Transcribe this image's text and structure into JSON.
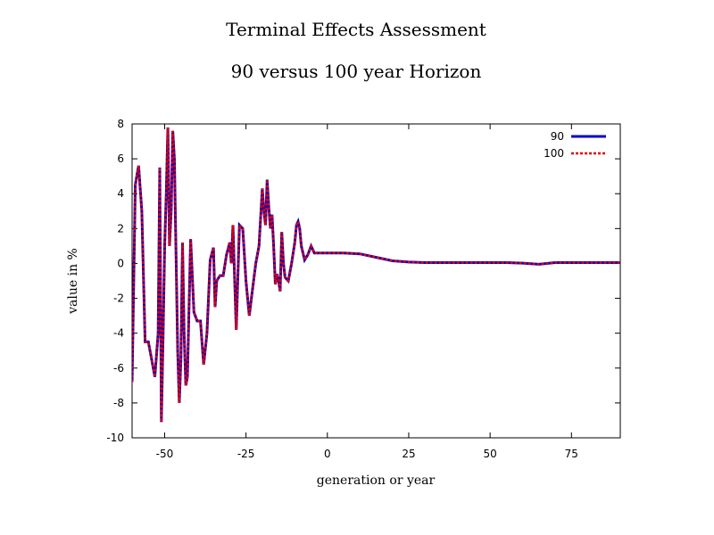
{
  "chart_data": {
    "type": "line",
    "title": "Terminal Effects Assessment",
    "subtitle": "90 versus 100 year Horizon",
    "xlabel": "generation or year",
    "ylabel": "value in %",
    "xlim": [
      -60,
      90
    ],
    "ylim": [
      -10,
      8
    ],
    "x_ticks": [
      -50,
      -25,
      0,
      25,
      50,
      75
    ],
    "y_ticks": [
      8,
      6,
      4,
      2,
      0,
      -2,
      -4,
      -6,
      -8,
      -10
    ],
    "legend_position": "top-right",
    "grid": false,
    "series": [
      {
        "name": "90",
        "color": "#0000cc",
        "style": "solid",
        "points": [
          [
            -60,
            -6.8
          ],
          [
            -59,
            4.5
          ],
          [
            -58,
            5.6
          ],
          [
            -57,
            3.0
          ],
          [
            -56,
            -4.5
          ],
          [
            -55,
            -4.5
          ],
          [
            -54,
            -5.5
          ],
          [
            -53,
            -6.5
          ],
          [
            -52,
            -4.0
          ],
          [
            -51.5,
            5.5
          ],
          [
            -51,
            -9.1
          ],
          [
            -50.5,
            -4.5
          ],
          [
            -50,
            1.0
          ],
          [
            -49.5,
            4.0
          ],
          [
            -49,
            7.8
          ],
          [
            -48.5,
            1.0
          ],
          [
            -48,
            3.0
          ],
          [
            -47.5,
            7.6
          ],
          [
            -47,
            6.0
          ],
          [
            -46,
            -5.0
          ],
          [
            -45.5,
            -8.0
          ],
          [
            -45,
            -5.5
          ],
          [
            -44.5,
            1.2
          ],
          [
            -44,
            -4.0
          ],
          [
            -43.5,
            -7.0
          ],
          [
            -43,
            -6.5
          ],
          [
            -42,
            1.4
          ],
          [
            -41,
            -2.8
          ],
          [
            -40,
            -3.3
          ],
          [
            -39,
            -3.3
          ],
          [
            -38,
            -5.8
          ],
          [
            -37,
            -4.0
          ],
          [
            -36,
            0.2
          ],
          [
            -35,
            0.9
          ],
          [
            -34.5,
            -2.5
          ],
          [
            -34,
            -1.0
          ],
          [
            -33,
            -0.7
          ],
          [
            -32,
            -0.7
          ],
          [
            -31,
            0.5
          ],
          [
            -30,
            1.2
          ],
          [
            -29.5,
            0.0
          ],
          [
            -29,
            2.2
          ],
          [
            -28,
            -3.8
          ],
          [
            -27,
            2.2
          ],
          [
            -26,
            2.0
          ],
          [
            -25,
            -1.0
          ],
          [
            -24,
            -3.0
          ],
          [
            -23,
            -1.5
          ],
          [
            -22,
            0.0
          ],
          [
            -21,
            1.0
          ],
          [
            -20,
            4.3
          ],
          [
            -19.5,
            3.0
          ],
          [
            -19,
            2.2
          ],
          [
            -18.5,
            4.8
          ],
          [
            -18,
            3.2
          ],
          [
            -17.5,
            2.0
          ],
          [
            -17,
            2.8
          ],
          [
            -16.5,
            1.0
          ],
          [
            -16,
            -1.2
          ],
          [
            -15.5,
            -0.6
          ],
          [
            -15,
            -1.0
          ],
          [
            -14.5,
            -1.6
          ],
          [
            -14,
            1.8
          ],
          [
            -13.5,
            0.0
          ],
          [
            -13,
            -0.8
          ],
          [
            -12,
            -1.0
          ],
          [
            -11,
            0.0
          ],
          [
            -10,
            1.2
          ],
          [
            -9.5,
            2.2
          ],
          [
            -9,
            2.4
          ],
          [
            -8.5,
            2.0
          ],
          [
            -8,
            1.0
          ],
          [
            -7,
            0.2
          ],
          [
            -6,
            0.5
          ],
          [
            -5,
            1.0
          ],
          [
            -4,
            0.6
          ],
          [
            -2,
            0.6
          ],
          [
            0,
            0.6
          ],
          [
            5,
            0.6
          ],
          [
            10,
            0.55
          ],
          [
            15,
            0.35
          ],
          [
            20,
            0.15
          ],
          [
            25,
            0.08
          ],
          [
            30,
            0.05
          ],
          [
            35,
            0.05
          ],
          [
            40,
            0.05
          ],
          [
            45,
            0.05
          ],
          [
            50,
            0.05
          ],
          [
            55,
            0.05
          ],
          [
            60,
            0.02
          ],
          [
            65,
            -0.05
          ],
          [
            70,
            0.05
          ],
          [
            75,
            0.05
          ],
          [
            80,
            0.05
          ],
          [
            85,
            0.05
          ],
          [
            90,
            0.05
          ]
        ]
      },
      {
        "name": "100",
        "color": "#dd0000",
        "style": "dashed",
        "points": [
          [
            -60,
            -6.8
          ],
          [
            -59,
            4.5
          ],
          [
            -58,
            5.6
          ],
          [
            -57,
            3.0
          ],
          [
            -56,
            -4.5
          ],
          [
            -55,
            -4.5
          ],
          [
            -54,
            -5.5
          ],
          [
            -53,
            -6.5
          ],
          [
            -52,
            -4.0
          ],
          [
            -51.5,
            5.5
          ],
          [
            -51,
            -9.1
          ],
          [
            -50.5,
            -4.5
          ],
          [
            -50,
            1.0
          ],
          [
            -49.5,
            4.0
          ],
          [
            -49,
            7.8
          ],
          [
            -48.5,
            1.0
          ],
          [
            -48,
            3.0
          ],
          [
            -47.5,
            7.6
          ],
          [
            -47,
            6.0
          ],
          [
            -46,
            -5.0
          ],
          [
            -45.5,
            -8.0
          ],
          [
            -45,
            -5.5
          ],
          [
            -44.5,
            1.2
          ],
          [
            -44,
            -4.0
          ],
          [
            -43.5,
            -7.0
          ],
          [
            -43,
            -6.5
          ],
          [
            -42,
            1.4
          ],
          [
            -41,
            -2.8
          ],
          [
            -40,
            -3.3
          ],
          [
            -39,
            -3.3
          ],
          [
            -38,
            -5.8
          ],
          [
            -37,
            -4.0
          ],
          [
            -36,
            0.2
          ],
          [
            -35,
            0.9
          ],
          [
            -34.5,
            -2.5
          ],
          [
            -34,
            -1.0
          ],
          [
            -33,
            -0.7
          ],
          [
            -32,
            -0.7
          ],
          [
            -31,
            0.5
          ],
          [
            -30,
            1.2
          ],
          [
            -29.5,
            0.0
          ],
          [
            -29,
            2.2
          ],
          [
            -28,
            -3.8
          ],
          [
            -27,
            2.2
          ],
          [
            -26,
            2.0
          ],
          [
            -25,
            -1.0
          ],
          [
            -24,
            -3.0
          ],
          [
            -23,
            -1.5
          ],
          [
            -22,
            0.0
          ],
          [
            -21,
            1.0
          ],
          [
            -20,
            4.3
          ],
          [
            -19.5,
            3.0
          ],
          [
            -19,
            2.2
          ],
          [
            -18.5,
            4.8
          ],
          [
            -18,
            3.2
          ],
          [
            -17.5,
            2.0
          ],
          [
            -17,
            2.8
          ],
          [
            -16.5,
            1.0
          ],
          [
            -16,
            -1.2
          ],
          [
            -15.5,
            -0.6
          ],
          [
            -15,
            -1.0
          ],
          [
            -14.5,
            -1.6
          ],
          [
            -14,
            1.8
          ],
          [
            -13.5,
            0.0
          ],
          [
            -13,
            -0.8
          ],
          [
            -12,
            -1.0
          ],
          [
            -11,
            0.0
          ],
          [
            -10,
            1.2
          ],
          [
            -9.5,
            2.2
          ],
          [
            -9,
            2.4
          ],
          [
            -8.5,
            2.0
          ],
          [
            -8,
            1.0
          ],
          [
            -7,
            0.2
          ],
          [
            -6,
            0.5
          ],
          [
            -5,
            1.0
          ],
          [
            -4,
            0.6
          ],
          [
            -2,
            0.6
          ],
          [
            0,
            0.6
          ],
          [
            5,
            0.6
          ],
          [
            10,
            0.55
          ],
          [
            15,
            0.35
          ],
          [
            20,
            0.15
          ],
          [
            25,
            0.08
          ],
          [
            30,
            0.05
          ],
          [
            35,
            0.05
          ],
          [
            40,
            0.05
          ],
          [
            45,
            0.05
          ],
          [
            50,
            0.05
          ],
          [
            55,
            0.05
          ],
          [
            60,
            0.02
          ],
          [
            65,
            -0.05
          ],
          [
            70,
            0.05
          ],
          [
            75,
            0.05
          ],
          [
            80,
            0.05
          ],
          [
            85,
            0.05
          ],
          [
            90,
            0.05
          ]
        ]
      }
    ]
  }
}
